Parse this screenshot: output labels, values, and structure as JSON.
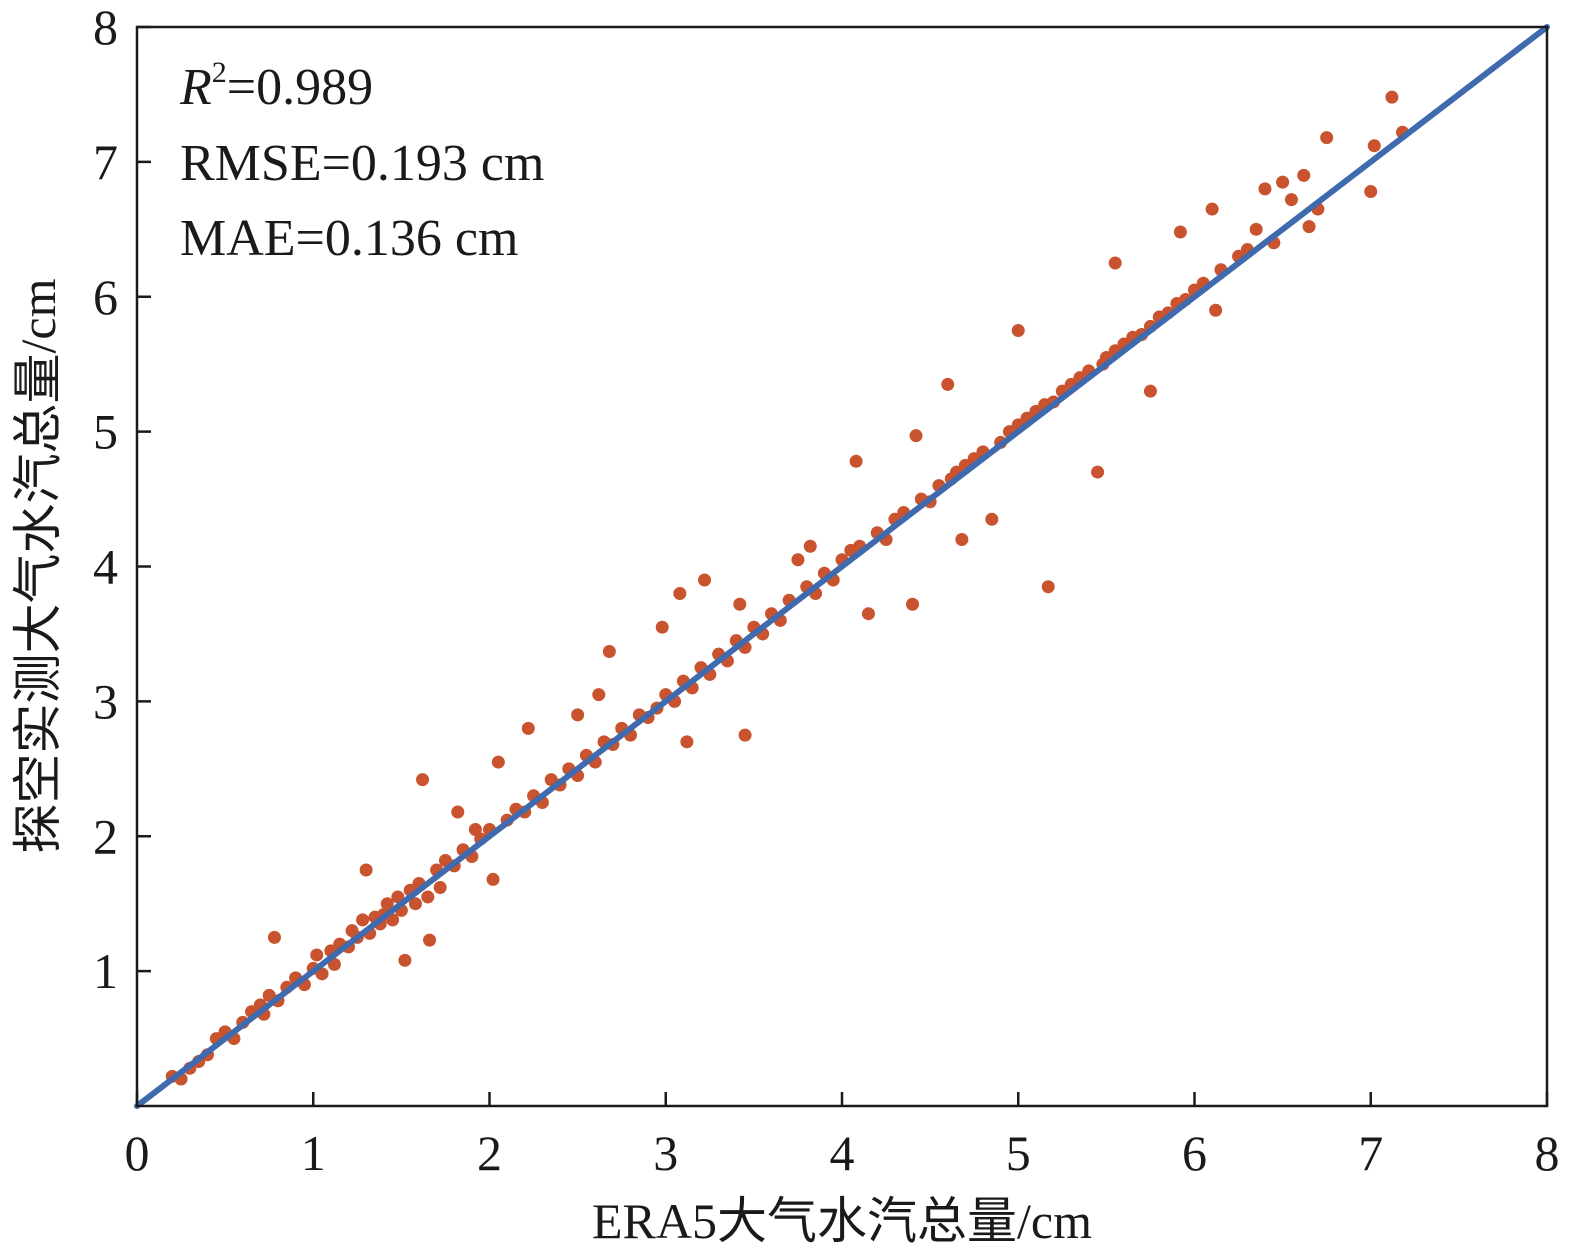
{
  "chart_data": {
    "type": "scatter",
    "title": "",
    "xlabel": "ERA5大气水汽总量/cm",
    "ylabel": "探空实测大气水汽总量/cm",
    "xlim": [
      0,
      8
    ],
    "ylim": [
      0,
      8
    ],
    "xticks": [
      "0",
      "1",
      "2",
      "3",
      "4",
      "5",
      "6",
      "7",
      "8"
    ],
    "yticks": [
      "1",
      "2",
      "3",
      "4",
      "5",
      "6",
      "7",
      "8"
    ],
    "grid": false,
    "colors": {
      "points": "#C8532E",
      "fit_line": "#3F6AAE",
      "axes": "#1a1a1a"
    },
    "fit_line": {
      "from": [
        0,
        0
      ],
      "to": [
        8,
        8
      ]
    },
    "annotations": {
      "r2_symbol": "R",
      "r2_exponent": "2",
      "r2_value": "=0.989",
      "rmse": "RMSE=0.193 cm",
      "mae": "MAE=0.136 cm"
    },
    "series": [
      {
        "points": [
          [
            0.2,
            0.22
          ],
          [
            0.25,
            0.2
          ],
          [
            0.3,
            0.28
          ],
          [
            0.35,
            0.33
          ],
          [
            0.4,
            0.38
          ],
          [
            0.45,
            0.5
          ],
          [
            0.5,
            0.55
          ],
          [
            0.55,
            0.5
          ],
          [
            0.6,
            0.62
          ],
          [
            0.65,
            0.7
          ],
          [
            0.7,
            0.75
          ],
          [
            0.72,
            0.68
          ],
          [
            0.75,
            0.82
          ],
          [
            0.78,
            1.25
          ],
          [
            0.8,
            0.78
          ],
          [
            0.85,
            0.88
          ],
          [
            0.9,
            0.95
          ],
          [
            0.95,
            0.9
          ],
          [
            1.0,
            1.02
          ],
          [
            1.02,
            1.12
          ],
          [
            1.05,
            0.98
          ],
          [
            1.1,
            1.15
          ],
          [
            1.12,
            1.05
          ],
          [
            1.15,
            1.2
          ],
          [
            1.2,
            1.18
          ],
          [
            1.22,
            1.3
          ],
          [
            1.25,
            1.25
          ],
          [
            1.28,
            1.38
          ],
          [
            1.3,
            1.75
          ],
          [
            1.32,
            1.28
          ],
          [
            1.35,
            1.4
          ],
          [
            1.38,
            1.35
          ],
          [
            1.4,
            1.42
          ],
          [
            1.42,
            1.5
          ],
          [
            1.45,
            1.38
          ],
          [
            1.48,
            1.55
          ],
          [
            1.5,
            1.45
          ],
          [
            1.52,
            1.08
          ],
          [
            1.55,
            1.6
          ],
          [
            1.58,
            1.5
          ],
          [
            1.6,
            1.65
          ],
          [
            1.62,
            2.42
          ],
          [
            1.65,
            1.55
          ],
          [
            1.66,
            1.23
          ],
          [
            1.7,
            1.75
          ],
          [
            1.72,
            1.62
          ],
          [
            1.75,
            1.82
          ],
          [
            1.8,
            1.78
          ],
          [
            1.82,
            2.18
          ],
          [
            1.85,
            1.9
          ],
          [
            1.9,
            1.85
          ],
          [
            1.92,
            2.05
          ],
          [
            1.95,
            1.98
          ],
          [
            2.0,
            2.05
          ],
          [
            2.02,
            1.68
          ],
          [
            2.05,
            2.55
          ],
          [
            2.1,
            2.12
          ],
          [
            2.15,
            2.2
          ],
          [
            2.2,
            2.18
          ],
          [
            2.22,
            2.8
          ],
          [
            2.25,
            2.3
          ],
          [
            2.3,
            2.25
          ],
          [
            2.35,
            2.42
          ],
          [
            2.4,
            2.38
          ],
          [
            2.45,
            2.5
          ],
          [
            2.5,
            2.45
          ],
          [
            2.5,
            2.9
          ],
          [
            2.55,
            2.6
          ],
          [
            2.6,
            2.55
          ],
          [
            2.62,
            3.05
          ],
          [
            2.65,
            2.7
          ],
          [
            2.68,
            3.37
          ],
          [
            2.7,
            2.68
          ],
          [
            2.75,
            2.8
          ],
          [
            2.8,
            2.75
          ],
          [
            2.85,
            2.9
          ],
          [
            2.9,
            2.88
          ],
          [
            2.95,
            2.95
          ],
          [
            2.98,
            3.55
          ],
          [
            3.0,
            3.05
          ],
          [
            3.05,
            3.0
          ],
          [
            3.08,
            3.8
          ],
          [
            3.1,
            3.15
          ],
          [
            3.12,
            2.7
          ],
          [
            3.15,
            3.1
          ],
          [
            3.2,
            3.25
          ],
          [
            3.22,
            3.9
          ],
          [
            3.25,
            3.2
          ],
          [
            3.3,
            3.35
          ],
          [
            3.35,
            3.3
          ],
          [
            3.4,
            3.45
          ],
          [
            3.42,
            3.72
          ],
          [
            3.45,
            3.4
          ],
          [
            3.45,
            2.75
          ],
          [
            3.5,
            3.55
          ],
          [
            3.55,
            3.5
          ],
          [
            3.6,
            3.65
          ],
          [
            3.65,
            3.6
          ],
          [
            3.7,
            3.75
          ],
          [
            3.75,
            4.05
          ],
          [
            3.8,
            3.85
          ],
          [
            3.82,
            4.15
          ],
          [
            3.85,
            3.8
          ],
          [
            3.9,
            3.95
          ],
          [
            3.95,
            3.9
          ],
          [
            4.0,
            4.05
          ],
          [
            4.05,
            4.12
          ],
          [
            4.08,
            4.78
          ],
          [
            4.1,
            4.15
          ],
          [
            4.15,
            3.65
          ],
          [
            4.2,
            4.25
          ],
          [
            4.25,
            4.2
          ],
          [
            4.3,
            4.35
          ],
          [
            4.35,
            4.4
          ],
          [
            4.4,
            3.72
          ],
          [
            4.42,
            4.97
          ],
          [
            4.45,
            4.5
          ],
          [
            4.5,
            4.48
          ],
          [
            4.55,
            4.6
          ],
          [
            4.6,
            5.35
          ],
          [
            4.62,
            4.65
          ],
          [
            4.65,
            4.7
          ],
          [
            4.68,
            4.2
          ],
          [
            4.7,
            4.75
          ],
          [
            4.75,
            4.8
          ],
          [
            4.8,
            4.85
          ],
          [
            4.85,
            4.35
          ],
          [
            4.9,
            4.92
          ],
          [
            4.95,
            5.0
          ],
          [
            5.0,
            5.75
          ],
          [
            5.0,
            5.05
          ],
          [
            5.05,
            5.1
          ],
          [
            5.1,
            5.15
          ],
          [
            5.15,
            5.2
          ],
          [
            5.17,
            3.85
          ],
          [
            5.2,
            5.22
          ],
          [
            5.25,
            5.3
          ],
          [
            5.3,
            5.35
          ],
          [
            5.35,
            5.4
          ],
          [
            5.4,
            5.45
          ],
          [
            5.45,
            4.7
          ],
          [
            5.48,
            5.5
          ],
          [
            5.5,
            5.55
          ],
          [
            5.55,
            5.6
          ],
          [
            5.55,
            6.25
          ],
          [
            5.6,
            5.65
          ],
          [
            5.65,
            5.7
          ],
          [
            5.7,
            5.72
          ],
          [
            5.75,
            5.78
          ],
          [
            5.75,
            5.3
          ],
          [
            5.8,
            5.85
          ],
          [
            5.85,
            5.88
          ],
          [
            5.9,
            5.95
          ],
          [
            5.92,
            6.48
          ],
          [
            5.95,
            5.98
          ],
          [
            6.0,
            6.05
          ],
          [
            6.05,
            6.1
          ],
          [
            6.1,
            6.65
          ],
          [
            6.12,
            5.9
          ],
          [
            6.15,
            6.2
          ],
          [
            6.25,
            6.3
          ],
          [
            6.3,
            6.35
          ],
          [
            6.35,
            6.5
          ],
          [
            6.4,
            6.8
          ],
          [
            6.45,
            6.4
          ],
          [
            6.5,
            6.85
          ],
          [
            6.55,
            6.72
          ],
          [
            6.62,
            6.9
          ],
          [
            6.65,
            6.52
          ],
          [
            6.7,
            6.65
          ],
          [
            6.75,
            7.18
          ],
          [
            7.0,
            6.78
          ],
          [
            7.02,
            7.12
          ],
          [
            7.12,
            7.48
          ],
          [
            7.18,
            7.22
          ]
        ]
      }
    ]
  }
}
